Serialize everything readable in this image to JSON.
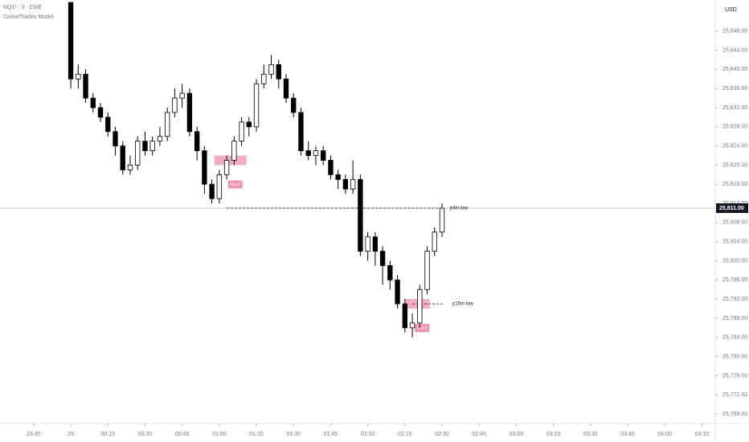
{
  "chart_data": {
    "type": "candlestick",
    "title": "NQ1! · 3 · CME",
    "subtitle": "CelineTrades Model",
    "currency": "USD",
    "x": [
      0,
      3,
      6,
      9,
      12,
      15,
      18,
      21,
      24,
      27,
      30,
      33,
      36,
      39,
      42,
      45,
      48,
      51,
      54,
      57,
      60,
      63,
      66,
      69,
      72,
      75,
      78,
      81,
      84,
      87,
      90,
      93,
      96,
      99,
      102,
      105,
      108,
      111,
      114,
      117,
      120,
      123,
      126,
      129,
      132,
      135,
      138,
      141,
      144,
      147,
      150
    ],
    "open": [
      25854,
      25838,
      25839,
      25834,
      25832,
      25830,
      25827,
      25824,
      25819,
      25820,
      25825,
      25823,
      25825,
      25826,
      25831,
      25834,
      25835,
      25827,
      25823,
      25816,
      25813,
      25818,
      25821,
      25825,
      25829,
      25828,
      25837,
      25839,
      25841,
      25838,
      25834,
      25831,
      25823,
      25822,
      25823,
      25821,
      25818,
      25817,
      25815,
      25817,
      25802,
      25805,
      25802,
      25799,
      25796,
      25791,
      25786,
      25787,
      25794,
      25802,
      25806
    ],
    "high": [
      25854,
      25841,
      25840,
      25835,
      25833,
      25831,
      25828,
      25825,
      25822,
      25826,
      25827,
      25826,
      25828,
      25832,
      25836,
      25837,
      25836,
      25828,
      25824,
      25817,
      25819,
      25822,
      25826,
      25830,
      25830,
      25838,
      25841,
      25843,
      25842,
      25839,
      25835,
      25832,
      25825,
      25824,
      25824,
      25822,
      25819,
      25818,
      25821,
      25818,
      25806,
      25806,
      25803,
      25800,
      25797,
      25792,
      25789,
      25795,
      25803,
      25807,
      25812
    ],
    "low": [
      25836,
      25836,
      25833,
      25831,
      25829,
      25826,
      25822,
      25818,
      25818,
      25819,
      25822,
      25822,
      25824,
      25825,
      25830,
      25832,
      25826,
      25821,
      25814,
      25812,
      25812,
      25817,
      25820,
      25824,
      25826,
      25827,
      25836,
      25838,
      25836,
      25833,
      25830,
      25822,
      25821,
      25820,
      25820,
      25817,
      25815,
      25814,
      25814,
      25801,
      25800,
      25799,
      25795,
      25794,
      25790,
      25785,
      25784,
      25786,
      25793,
      25801,
      25805
    ],
    "close": [
      25838,
      25839,
      25834,
      25832,
      25830,
      25827,
      25824,
      25819,
      25820,
      25825,
      25823,
      25825,
      25826,
      25831,
      25834,
      25835,
      25827,
      25823,
      25816,
      25813,
      25818,
      25821,
      25825,
      25829,
      25828,
      25837,
      25839,
      25841,
      25838,
      25834,
      25831,
      25823,
      25822,
      25823,
      25821,
      25818,
      25817,
      25815,
      25817,
      25802,
      25805,
      25802,
      25799,
      25796,
      25791,
      25786,
      25787,
      25794,
      25802,
      25806,
      25811
    ],
    "up_color": "#ffffff",
    "down_color": "#000000",
    "wick_color": "#000000",
    "xlim": [
      -28.6,
      260.4
    ],
    "ylim": [
      25766,
      25854.5
    ],
    "xticks": [
      {
        "value": -15,
        "label": "23:45"
      },
      {
        "value": 0,
        "label": "29"
      },
      {
        "value": 15,
        "label": "00:15"
      },
      {
        "value": 30,
        "label": "00:30"
      },
      {
        "value": 45,
        "label": "00:45"
      },
      {
        "value": 60,
        "label": "01:00"
      },
      {
        "value": 75,
        "label": "01:15"
      },
      {
        "value": 90,
        "label": "01:30"
      },
      {
        "value": 105,
        "label": "01:45"
      },
      {
        "value": 120,
        "label": "02:00"
      },
      {
        "value": 135,
        "label": "02:15"
      },
      {
        "value": 150,
        "label": "02:30"
      },
      {
        "value": 165,
        "label": "02:45"
      },
      {
        "value": 180,
        "label": "03:00"
      },
      {
        "value": 195,
        "label": "03:15"
      },
      {
        "value": 210,
        "label": "03:30"
      },
      {
        "value": 225,
        "label": "03:45"
      },
      {
        "value": 240,
        "label": "04:00"
      },
      {
        "value": 255,
        "label": "04:15"
      }
    ],
    "yticks": [
      {
        "value": 25848,
        "label": "25,848.00"
      },
      {
        "value": 25844,
        "label": "25,844.00"
      },
      {
        "value": 25840,
        "label": "25,840.00"
      },
      {
        "value": 25836,
        "label": "25,836.00"
      },
      {
        "value": 25832,
        "label": "25,832.00"
      },
      {
        "value": 25828,
        "label": "25,828.00"
      },
      {
        "value": 25824,
        "label": "25,824.00"
      },
      {
        "value": 25820,
        "label": "25,820.00"
      },
      {
        "value": 25816,
        "label": "25,816.00"
      },
      {
        "value": 25812,
        "label": "25,812.00"
      },
      {
        "value": 25808,
        "label": "25,808.00"
      },
      {
        "value": 25804,
        "label": "25,804.00"
      },
      {
        "value": 25800,
        "label": "25,800.00"
      },
      {
        "value": 25796,
        "label": "25,796.00"
      },
      {
        "value": 25792,
        "label": "25,792.00"
      },
      {
        "value": 25788,
        "label": "25,788.00"
      },
      {
        "value": 25784,
        "label": "25,784.00"
      },
      {
        "value": 25780,
        "label": "25,780.00"
      },
      {
        "value": 25776,
        "label": "25,776.00"
      },
      {
        "value": 25772,
        "label": "25,772.00"
      },
      {
        "value": 25768,
        "label": "25,768.00"
      }
    ],
    "last_price": {
      "value": 25811,
      "label": "25,811.00"
    },
    "levels": [
      {
        "label": "p4H low",
        "value": 25811,
        "x": [
          63,
          150
        ]
      },
      {
        "label": "p15m low",
        "value": 25791,
        "x": [
          138,
          151
        ]
      }
    ],
    "zones": [
      {
        "label": "Day 3",
        "ylim": [
          25820,
          25822
        ],
        "xlim": [
          58,
          71
        ]
      },
      {
        "label": "Day 3",
        "ylim": [
          25790,
          25792
        ],
        "xlim": [
          135,
          145
        ]
      }
    ],
    "zone_color": "#f48fb1"
  }
}
